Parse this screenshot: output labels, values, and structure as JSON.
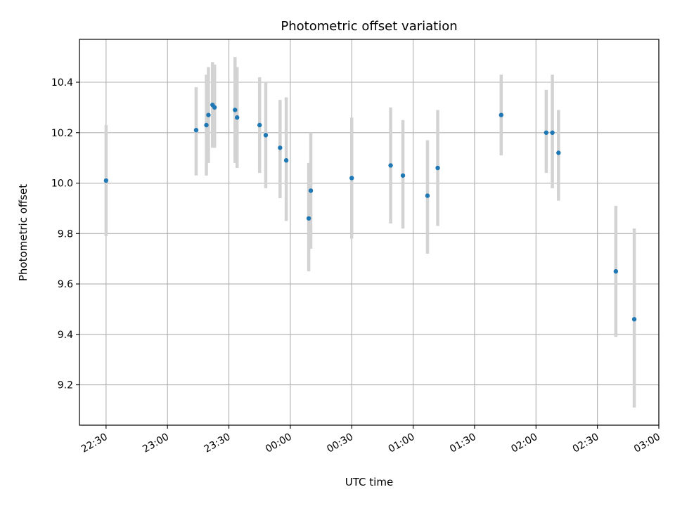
{
  "chart_data": {
    "type": "scatter",
    "title": "Photometric offset variation",
    "xlabel": "UTC time",
    "ylabel": "Photometric offset",
    "x_unit": "UTC clock time (HH:MM), ticks every 30 min, crossing midnight after 23:30",
    "xlim": [
      "22:17",
      "03:00"
    ],
    "ylim": [
      9.04,
      10.57
    ],
    "x_ticks": [
      "22:30",
      "23:00",
      "23:30",
      "00:00",
      "00:30",
      "01:00",
      "01:30",
      "02:00",
      "02:30",
      "03:00"
    ],
    "y_ticks": [
      "9.2",
      "9.4",
      "9.6",
      "9.8",
      "10.0",
      "10.2",
      "10.4"
    ],
    "y_tick_values": [
      9.2,
      9.4,
      9.6,
      9.8,
      10.0,
      10.2,
      10.4
    ],
    "grid": true,
    "colors": {
      "point": "#1f77b4",
      "errorbar": "#d3d3d3",
      "grid": "#b0b0b0"
    },
    "points": [
      {
        "x": "22:30",
        "y": 10.01,
        "err_low": 9.79,
        "err_high": 10.23
      },
      {
        "x": "23:14",
        "y": 10.21,
        "err_low": 10.03,
        "err_high": 10.38
      },
      {
        "x": "23:19",
        "y": 10.23,
        "err_low": 10.03,
        "err_high": 10.43
      },
      {
        "x": "23:20",
        "y": 10.27,
        "err_low": 10.08,
        "err_high": 10.46
      },
      {
        "x": "23:22",
        "y": 10.31,
        "err_low": 10.14,
        "err_high": 10.48
      },
      {
        "x": "23:23",
        "y": 10.3,
        "err_low": 10.14,
        "err_high": 10.47
      },
      {
        "x": "23:33",
        "y": 10.29,
        "err_low": 10.08,
        "err_high": 10.5
      },
      {
        "x": "23:34",
        "y": 10.26,
        "err_low": 10.06,
        "err_high": 10.46
      },
      {
        "x": "23:45",
        "y": 10.23,
        "err_low": 10.04,
        "err_high": 10.42
      },
      {
        "x": "23:48",
        "y": 10.19,
        "err_low": 9.98,
        "err_high": 10.4
      },
      {
        "x": "23:55",
        "y": 10.14,
        "err_low": 9.94,
        "err_high": 10.33
      },
      {
        "x": "23:58",
        "y": 10.09,
        "err_low": 9.85,
        "err_high": 10.34
      },
      {
        "x": "00:09",
        "y": 9.86,
        "err_low": 9.65,
        "err_high": 10.08
      },
      {
        "x": "00:10",
        "y": 9.97,
        "err_low": 9.74,
        "err_high": 10.2
      },
      {
        "x": "00:30",
        "y": 10.02,
        "err_low": 9.78,
        "err_high": 10.26
      },
      {
        "x": "00:49",
        "y": 10.07,
        "err_low": 9.84,
        "err_high": 10.3
      },
      {
        "x": "00:55",
        "y": 10.03,
        "err_low": 9.82,
        "err_high": 10.25
      },
      {
        "x": "01:07",
        "y": 9.95,
        "err_low": 9.72,
        "err_high": 10.17
      },
      {
        "x": "01:12",
        "y": 10.06,
        "err_low": 9.83,
        "err_high": 10.29
      },
      {
        "x": "01:43",
        "y": 10.27,
        "err_low": 10.11,
        "err_high": 10.43
      },
      {
        "x": "02:05",
        "y": 10.2,
        "err_low": 10.04,
        "err_high": 10.37
      },
      {
        "x": "02:08",
        "y": 10.2,
        "err_low": 9.98,
        "err_high": 10.43
      },
      {
        "x": "02:11",
        "y": 10.12,
        "err_low": 9.93,
        "err_high": 10.29
      },
      {
        "x": "02:39",
        "y": 9.65,
        "err_low": 9.39,
        "err_high": 9.91
      },
      {
        "x": "02:48",
        "y": 9.46,
        "err_low": 9.11,
        "err_high": 9.82
      }
    ]
  }
}
